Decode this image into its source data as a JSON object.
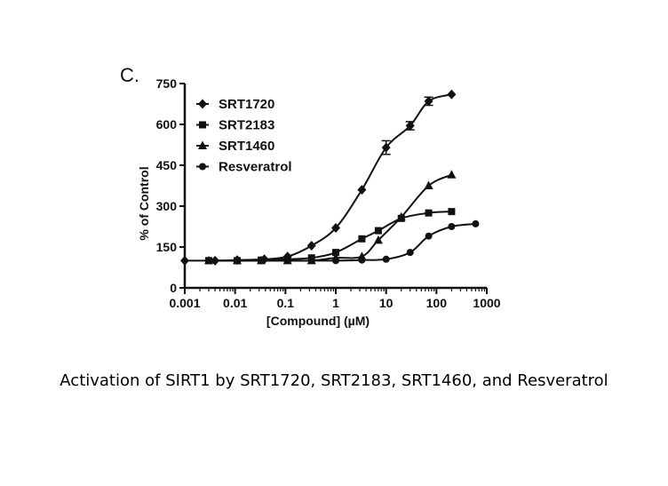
{
  "panel_label": "C.",
  "caption": "Activation of SIRT1 by SRT1720, SRT2183, SRT1460, and Resveratrol",
  "chart_data": {
    "type": "scatter",
    "title": "",
    "xlabel": "[Compound] (µM)",
    "ylabel": "% of Control",
    "x_scale": "log",
    "xlim": [
      0.001,
      1000
    ],
    "ylim": [
      0,
      750
    ],
    "x_ticks": [
      "0.001",
      "0.01",
      "0.1",
      "1",
      "10",
      "100",
      "1000"
    ],
    "y_ticks": [
      "0",
      "150",
      "300",
      "450",
      "600",
      "750"
    ],
    "legend_position": "top-left",
    "series": [
      {
        "name": "SRT1720",
        "marker": "diamond",
        "x": [
          0.001,
          0.004,
          0.011,
          0.038,
          0.11,
          0.33,
          1,
          3.3,
          10,
          30,
          70,
          200
        ],
        "y": [
          100,
          100,
          102,
          105,
          115,
          155,
          220,
          360,
          515,
          595,
          685,
          710
        ],
        "errors": [
          0,
          0,
          0,
          0,
          0,
          0,
          0,
          0,
          25,
          15,
          15,
          0
        ]
      },
      {
        "name": "SRT2183",
        "marker": "square",
        "x": [
          0.003,
          0.011,
          0.033,
          0.11,
          0.33,
          1,
          3.3,
          7,
          20,
          70,
          200
        ],
        "y": [
          100,
          100,
          102,
          105,
          110,
          130,
          180,
          210,
          255,
          275,
          280
        ],
        "errors": []
      },
      {
        "name": "SRT1460",
        "marker": "triangle",
        "x": [
          0.003,
          0.011,
          0.033,
          0.11,
          0.33,
          1,
          3.3,
          7,
          20,
          70,
          200
        ],
        "y": [
          100,
          100,
          100,
          100,
          100,
          110,
          115,
          175,
          260,
          375,
          415
        ],
        "errors": []
      },
      {
        "name": "Resveratrol",
        "marker": "circle",
        "x": [
          0.003,
          0.011,
          0.033,
          0.11,
          0.33,
          1,
          3.3,
          10,
          30,
          70,
          200,
          600
        ],
        "y": [
          100,
          100,
          100,
          100,
          100,
          100,
          102,
          105,
          130,
          190,
          225,
          235
        ],
        "errors": []
      }
    ]
  }
}
